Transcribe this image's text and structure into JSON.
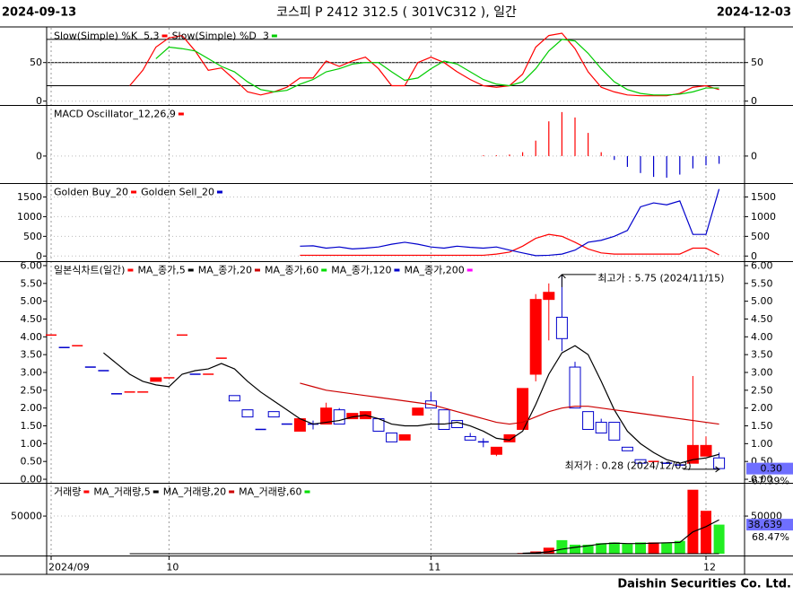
{
  "header": {
    "start_date": "2024-09-13",
    "title": "코스피 P 2412 312.5 ( 301VC312 ), 일간",
    "end_date": "2024-12-03"
  },
  "chart_data": [
    {
      "type": "line",
      "ylim": [
        -5,
        95
      ],
      "yticks": [
        0,
        50
      ],
      "levels": [
        20,
        50,
        80
      ],
      "series": [
        {
          "name": "Slow(Simple) %K  5,3",
          "color": "#ff0000",
          "values": [
            null,
            null,
            null,
            null,
            null,
            null,
            20,
            40,
            70,
            82,
            85,
            65,
            40,
            43,
            28,
            12,
            8,
            12,
            18,
            30,
            30,
            52,
            45,
            52,
            57,
            42,
            20,
            20,
            50,
            57,
            50,
            38,
            28,
            20,
            18,
            20,
            35,
            70,
            85,
            88,
            68,
            38,
            18,
            12,
            8,
            7,
            7,
            7,
            10,
            18,
            20,
            15
          ]
        },
        {
          "name": "Slow(Simple) %D  3",
          "color": "#00cc00",
          "values": [
            null,
            null,
            null,
            null,
            null,
            null,
            null,
            null,
            55,
            70,
            68,
            65,
            55,
            45,
            38,
            25,
            15,
            12,
            14,
            22,
            28,
            38,
            42,
            48,
            50,
            50,
            38,
            27,
            30,
            42,
            52,
            48,
            38,
            28,
            22,
            20,
            25,
            42,
            65,
            80,
            78,
            62,
            42,
            25,
            15,
            10,
            8,
            8,
            9,
            12,
            17,
            17
          ]
        }
      ]
    },
    {
      "type": "bar",
      "ylim": [
        -0.35,
        0.65
      ],
      "yticks": [
        0
      ],
      "series": [
        {
          "name": "MACD Oscillator_12,26,9",
          "color": "#ff0000",
          "negative_color": "#0000cc",
          "values": [
            null,
            null,
            null,
            null,
            null,
            null,
            null,
            null,
            null,
            null,
            null,
            null,
            null,
            null,
            null,
            null,
            null,
            null,
            null,
            null,
            null,
            null,
            null,
            null,
            null,
            null,
            null,
            null,
            null,
            null,
            null,
            null,
            null,
            0.01,
            0.01,
            0.02,
            0.05,
            0.2,
            0.45,
            0.57,
            0.5,
            0.3,
            0.05,
            -0.05,
            -0.14,
            -0.22,
            -0.27,
            -0.28,
            -0.24,
            -0.16,
            -0.12,
            -0.1
          ]
        }
      ]
    },
    {
      "type": "line",
      "ylim": [
        -130,
        1830
      ],
      "yticks": [
        0,
        500,
        1000,
        1500
      ],
      "series": [
        {
          "name": "Golden Buy_20",
          "color": "#ff0000",
          "values": [
            null,
            null,
            null,
            null,
            null,
            null,
            null,
            null,
            null,
            null,
            null,
            null,
            null,
            null,
            null,
            null,
            null,
            null,
            null,
            20,
            20,
            20,
            20,
            20,
            20,
            20,
            20,
            20,
            20,
            20,
            20,
            20,
            20,
            20,
            50,
            100,
            250,
            450,
            550,
            500,
            350,
            180,
            80,
            50,
            50,
            50,
            50,
            50,
            50,
            200,
            200,
            30
          ]
        },
        {
          "name": "Golden Sell_20",
          "color": "#0000cc",
          "values": [
            null,
            null,
            null,
            null,
            null,
            null,
            null,
            null,
            null,
            null,
            null,
            null,
            null,
            null,
            null,
            null,
            null,
            null,
            null,
            250,
            260,
            200,
            230,
            180,
            200,
            230,
            300,
            350,
            300,
            230,
            200,
            250,
            220,
            200,
            230,
            150,
            80,
            10,
            20,
            50,
            150,
            350,
            400,
            500,
            650,
            1250,
            1350,
            1300,
            1400,
            550,
            550,
            1700
          ]
        }
      ]
    },
    {
      "type": "candlestick",
      "ylim": [
        -0.1,
        6.1
      ],
      "yticks": [
        {
          "value": 0,
          "label": "0.00"
        },
        {
          "value": 0.5,
          "label": "0.50"
        },
        {
          "value": 1,
          "label": "1.00"
        },
        {
          "value": 1.5,
          "label": "1.50"
        },
        {
          "value": 2,
          "label": "2.00"
        },
        {
          "value": 2.5,
          "label": "2.50"
        },
        {
          "value": 3,
          "label": "3.00"
        },
        {
          "value": 3.5,
          "label": "3.50"
        },
        {
          "value": 4,
          "label": "4.00"
        },
        {
          "value": 4.5,
          "label": "4.50"
        },
        {
          "value": 5,
          "label": "5.00"
        },
        {
          "value": 5.5,
          "label": "5.50"
        },
        {
          "value": 6,
          "label": "6.00"
        }
      ],
      "series": [
        {
          "name": "일본식차트(일간)",
          "up_color": "#ff0000",
          "down_color": "#0000cc",
          "open": [
            4.05,
            3.7,
            3.75,
            3.15,
            3.05,
            2.4,
            2.45,
            2.45,
            2.75,
            2.85,
            4.05,
            2.95,
            2.95,
            3.4,
            2.35,
            1.95,
            1.4,
            1.9,
            1.55,
            1.35,
            1.55,
            1.55,
            1.95,
            1.7,
            1.7,
            1.7,
            1.3,
            1.1,
            1.8,
            2.2,
            1.95,
            1.65,
            1.2,
            1.05,
            0.7,
            1.05,
            1.4,
            2.95,
            5.05,
            4.55,
            3.15,
            1.9,
            1.6,
            1.6,
            0.9,
            0.55,
            0.5,
            0.45,
            0.4,
            0.45,
            0.65,
            0.6
          ],
          "high": [
            4.05,
            3.7,
            3.75,
            3.15,
            3.05,
            2.4,
            2.45,
            2.45,
            2.85,
            2.85,
            4.05,
            2.95,
            2.95,
            3.4,
            2.35,
            1.95,
            1.4,
            1.9,
            1.55,
            1.7,
            1.65,
            2.15,
            2.0,
            1.85,
            1.9,
            1.7,
            1.3,
            1.25,
            2.0,
            2.45,
            1.95,
            1.65,
            1.3,
            1.15,
            0.9,
            1.25,
            2.55,
            5.2,
            5.5,
            5.75,
            3.3,
            1.9,
            1.7,
            1.6,
            0.9,
            0.55,
            0.5,
            0.45,
            0.4,
            2.9,
            1.2,
            0.75
          ],
          "low": [
            4.05,
            3.7,
            3.75,
            3.15,
            3.05,
            2.4,
            2.45,
            2.45,
            2.75,
            2.85,
            4.05,
            2.95,
            2.95,
            3.4,
            2.2,
            1.75,
            1.4,
            1.75,
            1.55,
            1.35,
            1.4,
            1.55,
            1.55,
            1.7,
            1.7,
            1.35,
            1.05,
            1.1,
            1.8,
            2.0,
            1.4,
            1.45,
            1.1,
            0.9,
            0.65,
            1.05,
            1.4,
            2.75,
            3.9,
            3.6,
            2.0,
            1.4,
            1.3,
            1.1,
            0.8,
            0.45,
            0.5,
            0.45,
            0.4,
            0.45,
            0.65,
            0.28
          ],
          "close": [
            4.05,
            3.7,
            3.75,
            3.15,
            3.05,
            2.4,
            2.45,
            2.45,
            2.85,
            2.85,
            4.05,
            2.95,
            2.95,
            3.4,
            2.2,
            1.75,
            1.4,
            1.75,
            1.55,
            1.7,
            1.55,
            2.0,
            1.55,
            1.85,
            1.9,
            1.35,
            1.05,
            1.25,
            2.0,
            2.0,
            1.4,
            1.45,
            1.1,
            1.05,
            0.9,
            1.25,
            2.55,
            5.05,
            5.25,
            3.95,
            2.0,
            1.4,
            1.3,
            1.1,
            0.8,
            0.45,
            0.5,
            0.45,
            0.4,
            0.95,
            0.95,
            0.3
          ]
        },
        {
          "name": "MA_종가,5",
          "color": "#000000",
          "values": [
            null,
            null,
            null,
            null,
            3.55,
            3.25,
            2.95,
            2.75,
            2.65,
            2.6,
            2.95,
            3.05,
            3.1,
            3.25,
            3.1,
            2.75,
            2.45,
            2.2,
            1.95,
            1.7,
            1.55,
            1.6,
            1.65,
            1.75,
            1.8,
            1.7,
            1.55,
            1.5,
            1.5,
            1.55,
            1.55,
            1.6,
            1.5,
            1.35,
            1.15,
            1.1,
            1.35,
            2.1,
            2.95,
            3.55,
            3.75,
            3.5,
            2.75,
            1.95,
            1.35,
            1.0,
            0.75,
            0.55,
            0.45,
            0.55,
            0.6,
            0.7
          ]
        },
        {
          "name": "MA_종가,20",
          "color": "#cc0000",
          "values": [
            null,
            null,
            null,
            null,
            null,
            null,
            null,
            null,
            null,
            null,
            null,
            null,
            null,
            null,
            null,
            null,
            null,
            null,
            null,
            2.7,
            2.6,
            2.5,
            2.45,
            2.4,
            2.35,
            2.3,
            2.25,
            2.2,
            2.15,
            2.1,
            2.0,
            1.9,
            1.8,
            1.7,
            1.6,
            1.55,
            1.6,
            1.75,
            1.9,
            2.0,
            2.05,
            2.05,
            2.0,
            1.95,
            1.9,
            1.85,
            1.8,
            1.75,
            1.7,
            1.65,
            1.6,
            1.55
          ]
        }
      ],
      "extra_legend": [
        {
          "name": "MA_종가,60",
          "color": "#00dd00"
        },
        {
          "name": "MA_종가,120",
          "color": "#0000cc"
        },
        {
          "name": "MA_종가,200",
          "color": "#ff00ff"
        }
      ],
      "last_label": "0.30",
      "change_label": "-67.39%",
      "annotations": {
        "high": "최고가 : 5.75 (2024/11/15)",
        "low": "최저가 : 0.28 (2024/12/03)"
      }
    },
    {
      "type": "volume",
      "ylim": [
        -2400,
        93000
      ],
      "yticks": [
        50000
      ],
      "series": [
        {
          "name": "거래량",
          "up_color": "#ff0000",
          "down_color": "#22ee22",
          "values": [
            null,
            null,
            null,
            null,
            null,
            null,
            null,
            null,
            null,
            null,
            null,
            null,
            null,
            null,
            null,
            null,
            null,
            null,
            null,
            null,
            null,
            null,
            null,
            null,
            null,
            null,
            null,
            null,
            null,
            null,
            null,
            null,
            null,
            null,
            null,
            null,
            1000,
            3000,
            8000,
            18000,
            12000,
            12000,
            14000,
            15000,
            13000,
            15000,
            15000,
            15000,
            17000,
            85000,
            57000,
            38639
          ]
        },
        {
          "name": "MA_거래량,5",
          "color": "#000000",
          "values": [
            null,
            null,
            null,
            null,
            null,
            null,
            null,
            null,
            null,
            null,
            null,
            null,
            null,
            null,
            null,
            null,
            null,
            null,
            null,
            null,
            null,
            null,
            null,
            null,
            null,
            null,
            null,
            null,
            null,
            null,
            null,
            null,
            null,
            null,
            null,
            null,
            600,
            1200,
            2500,
            6000,
            8500,
            10500,
            13000,
            14000,
            13500,
            13500,
            14000,
            14500,
            15000,
            29000,
            36000,
            45000
          ]
        }
      ],
      "extra_legend": [
        {
          "name": "MA_거래량,20",
          "color": "#cc0000"
        },
        {
          "name": "MA_거래량,60",
          "color": "#00dd00"
        }
      ],
      "last_label": "38,639",
      "change_label": "68.47%"
    }
  ],
  "x_axis": {
    "ticks": [
      {
        "value": 0,
        "label": "2024/09"
      },
      {
        "value": 9,
        "label": "10"
      },
      {
        "value": 29,
        "label": "11"
      },
      {
        "value": 50,
        "label": "12"
      }
    ]
  },
  "footer": "Daishin Securities Co. Ltd."
}
